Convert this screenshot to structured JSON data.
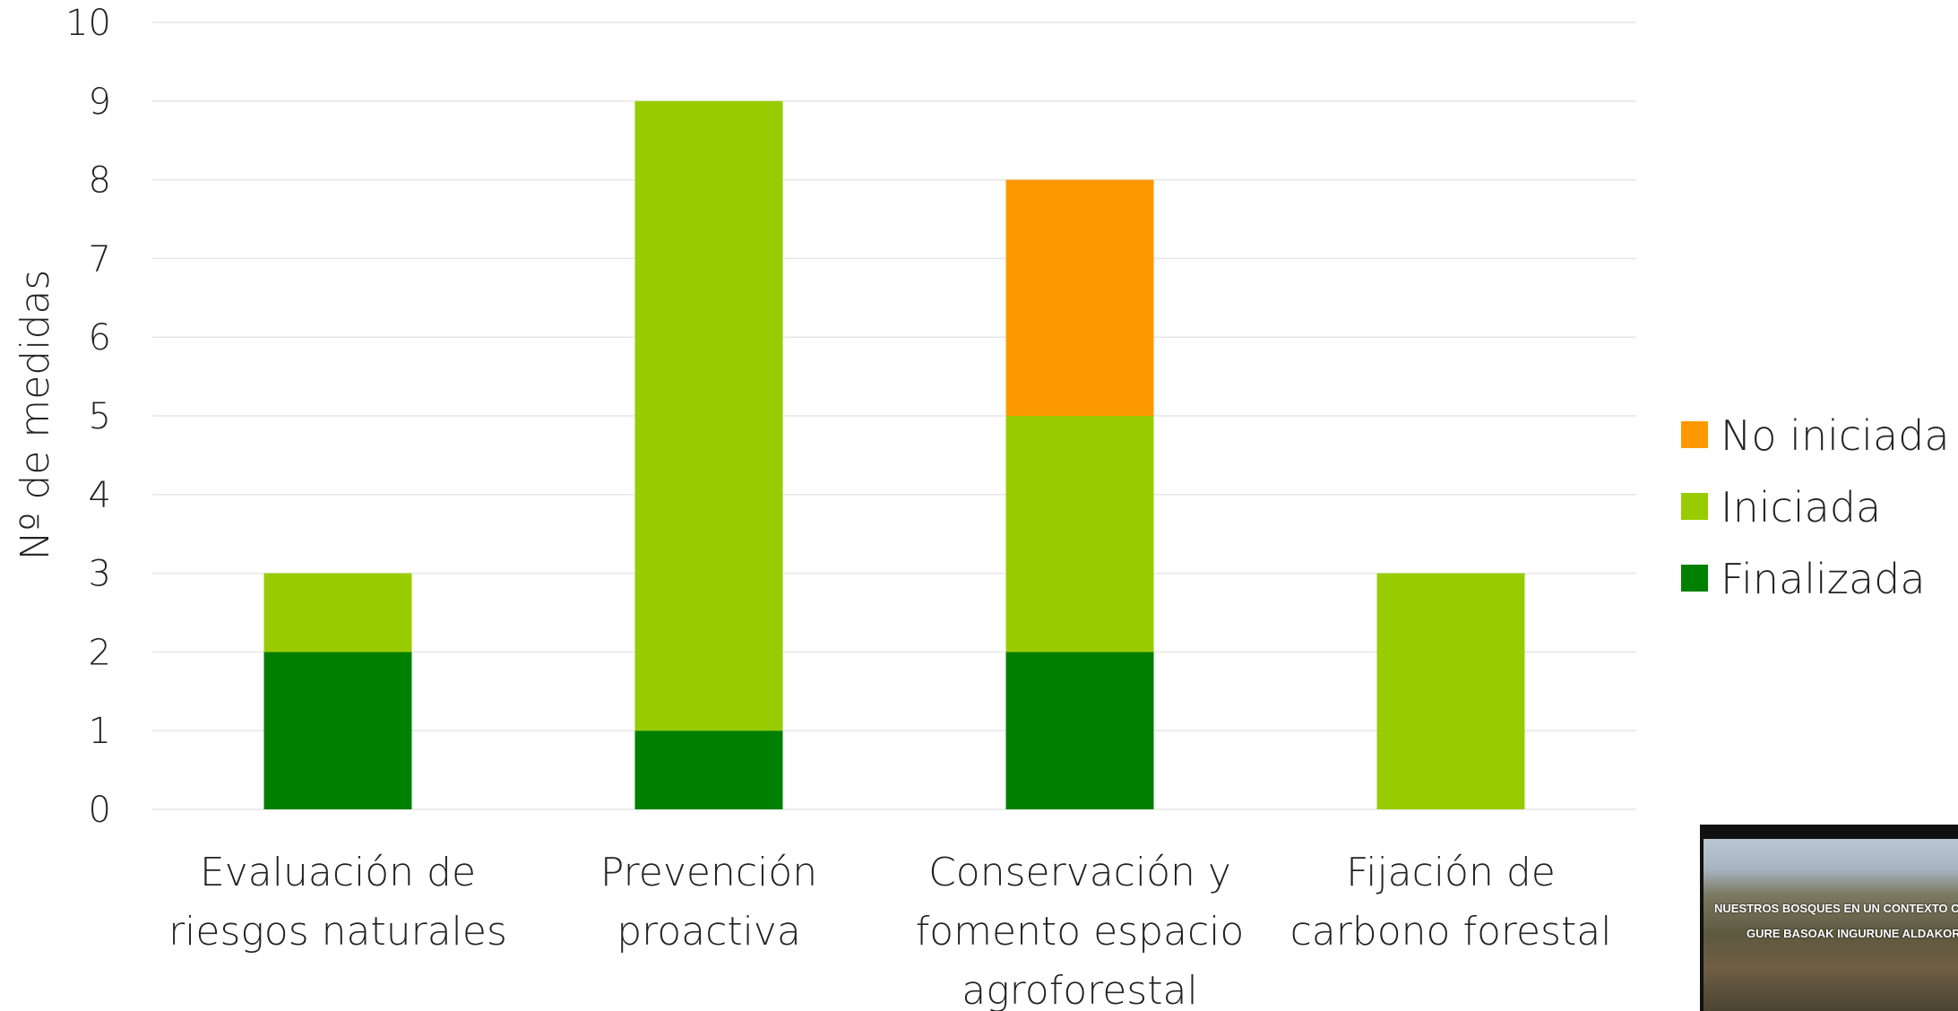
{
  "chart_data": {
    "type": "bar",
    "stacked": true,
    "ylabel": "Nº de medidas",
    "ylim": [
      0,
      10
    ],
    "yticks": [
      0,
      1,
      2,
      3,
      4,
      5,
      6,
      7,
      8,
      9,
      10
    ],
    "grid": true,
    "legend_position": "right",
    "categories": [
      [
        "Evaluación de",
        "riesgos naturales"
      ],
      [
        "Prevención",
        "proactiva"
      ],
      [
        "Conservación y",
        "fomento espacio",
        "agroforestal"
      ],
      [
        "Fijación de",
        "carbono forestal"
      ]
    ],
    "series": [
      {
        "name": "Finalizada",
        "color": "#008000",
        "values": [
          2,
          1,
          2,
          0
        ]
      },
      {
        "name": "Iniciada",
        "color": "#99cc00",
        "values": [
          1,
          8,
          3,
          3
        ]
      },
      {
        "name": "No iniciada",
        "color": "#ff9900",
        "values": [
          0,
          0,
          3,
          0
        ]
      }
    ],
    "legend_order": [
      "No iniciada",
      "Iniciada",
      "Finalizada"
    ]
  },
  "video_thumbnail": {
    "line1": "NUESTROS BOSQUES EN UN CONTEXTO C",
    "line2": "GURE BASOAK INGURUNE ALDAKOR B"
  }
}
